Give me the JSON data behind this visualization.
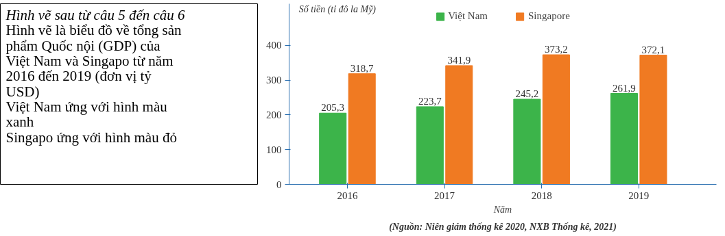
{
  "chart_data": {
    "type": "bar",
    "ylabel": "Số tiền (tỉ đô la Mỹ)",
    "xlabel": "Năm",
    "categories": [
      "2016",
      "2017",
      "2018",
      "2019"
    ],
    "series": [
      {
        "name": "Việt Nam",
        "color": "#3cb44a",
        "values": [
          205.3,
          223.7,
          245.2,
          261.9
        ],
        "value_labels": [
          "205,3",
          "223,7",
          "245,2",
          "261,9"
        ]
      },
      {
        "name": "Singapore",
        "color": "#f07a22",
        "values": [
          318.7,
          341.9,
          373.2,
          372.1
        ],
        "value_labels": [
          "318,7",
          "341,9",
          "373,2",
          "372,1"
        ]
      }
    ],
    "ylim": [
      0,
      520
    ],
    "yticks": [
      0,
      100,
      200,
      300,
      400
    ],
    "grid": false,
    "legend": "top",
    "annotations": [
      "Hình vẽ sau từ câu 5 đến câu 6",
      "Hình vẽ là biểu đồ về tổng sản",
      "phẩm Quốc nội (GDP)  của",
      "Việt Nam và Singapo từ năm",
      "2016 đến 2019 (đơn vị  tỷ",
      "USD)",
      "Việt Nam ứng với hình màu",
      "xanh",
      "Singapo ứng với hình màu đỏ",
      "(Nguồn: Niên giám thống kê 2020, NXB Thống kê, 2021)"
    ]
  }
}
